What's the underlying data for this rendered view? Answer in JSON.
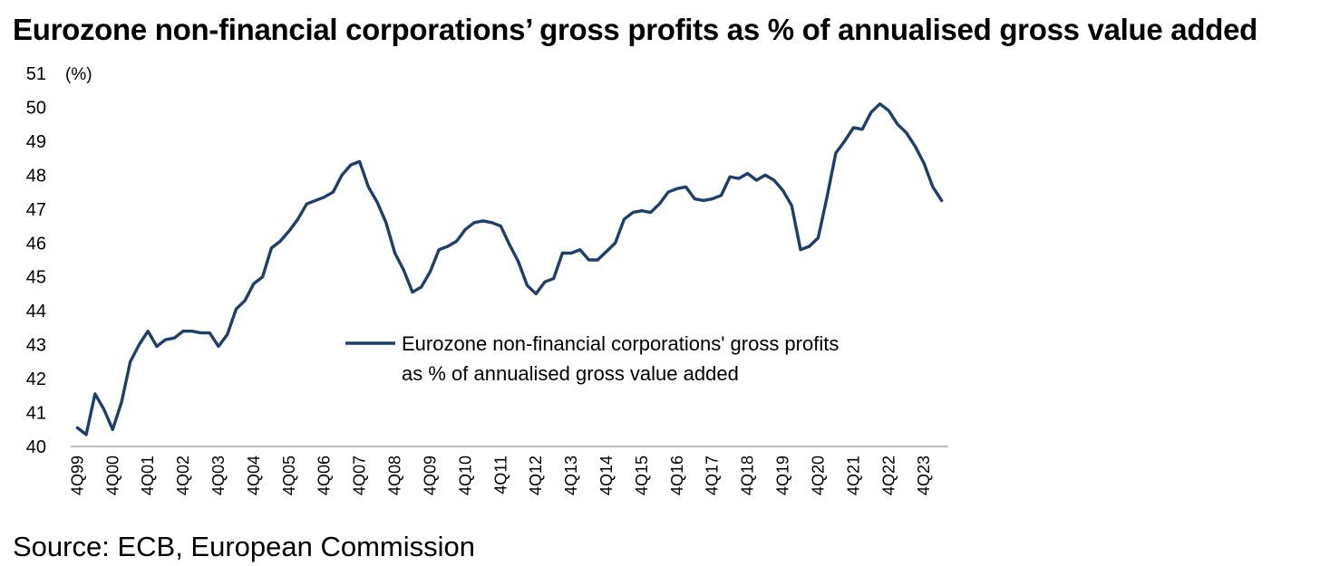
{
  "title": "Eurozone non-financial corporations’ gross profits as % of annualised gross value added",
  "source": "Source: ECB, European Commission",
  "colors": {
    "line": "#1c3f6e",
    "axis": "#bfbfbf"
  },
  "chart_data": {
    "type": "line",
    "title": "Eurozone non-financial corporations’ gross profits as % of annualised gross value added",
    "ylabel": "(%)",
    "xlabel": "",
    "ylim": [
      40,
      51
    ],
    "grid": false,
    "legend_position": "center",
    "yticks": [
      40,
      41,
      42,
      43,
      44,
      45,
      46,
      47,
      48,
      49,
      50,
      51
    ],
    "xtick_labels": [
      "4Q99",
      "4Q00",
      "4Q01",
      "4Q02",
      "4Q03",
      "4Q04",
      "4Q05",
      "4Q06",
      "4Q07",
      "4Q08",
      "4Q09",
      "4Q10",
      "4Q11",
      "4Q12",
      "4Q13",
      "4Q14",
      "4Q15",
      "4Q16",
      "4Q17",
      "4Q18",
      "4Q19",
      "4Q20",
      "4Q21",
      "4Q22",
      "4Q23"
    ],
    "series": [
      {
        "name": "Eurozone non-financial corporations' gross profits as % of annualised gross value added",
        "legend_lines": [
          "Eurozone non-financial corporations' gross profits",
          "as % of annualised gross value added"
        ],
        "values": [
          40.55,
          40.35,
          41.55,
          41.1,
          40.5,
          41.3,
          42.5,
          43.0,
          43.4,
          42.95,
          43.15,
          43.2,
          43.4,
          43.4,
          43.35,
          43.35,
          42.95,
          43.3,
          44.05,
          44.3,
          44.8,
          45.0,
          45.85,
          46.05,
          46.35,
          46.7,
          47.15,
          47.25,
          47.35,
          47.5,
          48.0,
          48.3,
          48.4,
          47.65,
          47.2,
          46.6,
          45.7,
          45.2,
          44.55,
          44.7,
          45.15,
          45.8,
          45.9,
          46.05,
          46.4,
          46.6,
          46.65,
          46.6,
          46.5,
          45.95,
          45.45,
          44.75,
          44.5,
          44.85,
          44.95,
          45.7,
          45.7,
          45.8,
          45.5,
          45.5,
          45.75,
          46.0,
          46.7,
          46.9,
          46.95,
          46.9,
          47.15,
          47.5,
          47.6,
          47.65,
          47.3,
          47.25,
          47.3,
          47.4,
          47.95,
          47.9,
          48.05,
          47.85,
          48.0,
          47.85,
          47.55,
          47.1,
          45.8,
          45.9,
          46.15,
          47.35,
          48.65,
          49.0,
          49.4,
          49.35,
          49.85,
          50.1,
          49.9,
          49.5,
          49.25,
          48.85,
          48.35,
          47.65,
          47.25
        ]
      }
    ]
  }
}
